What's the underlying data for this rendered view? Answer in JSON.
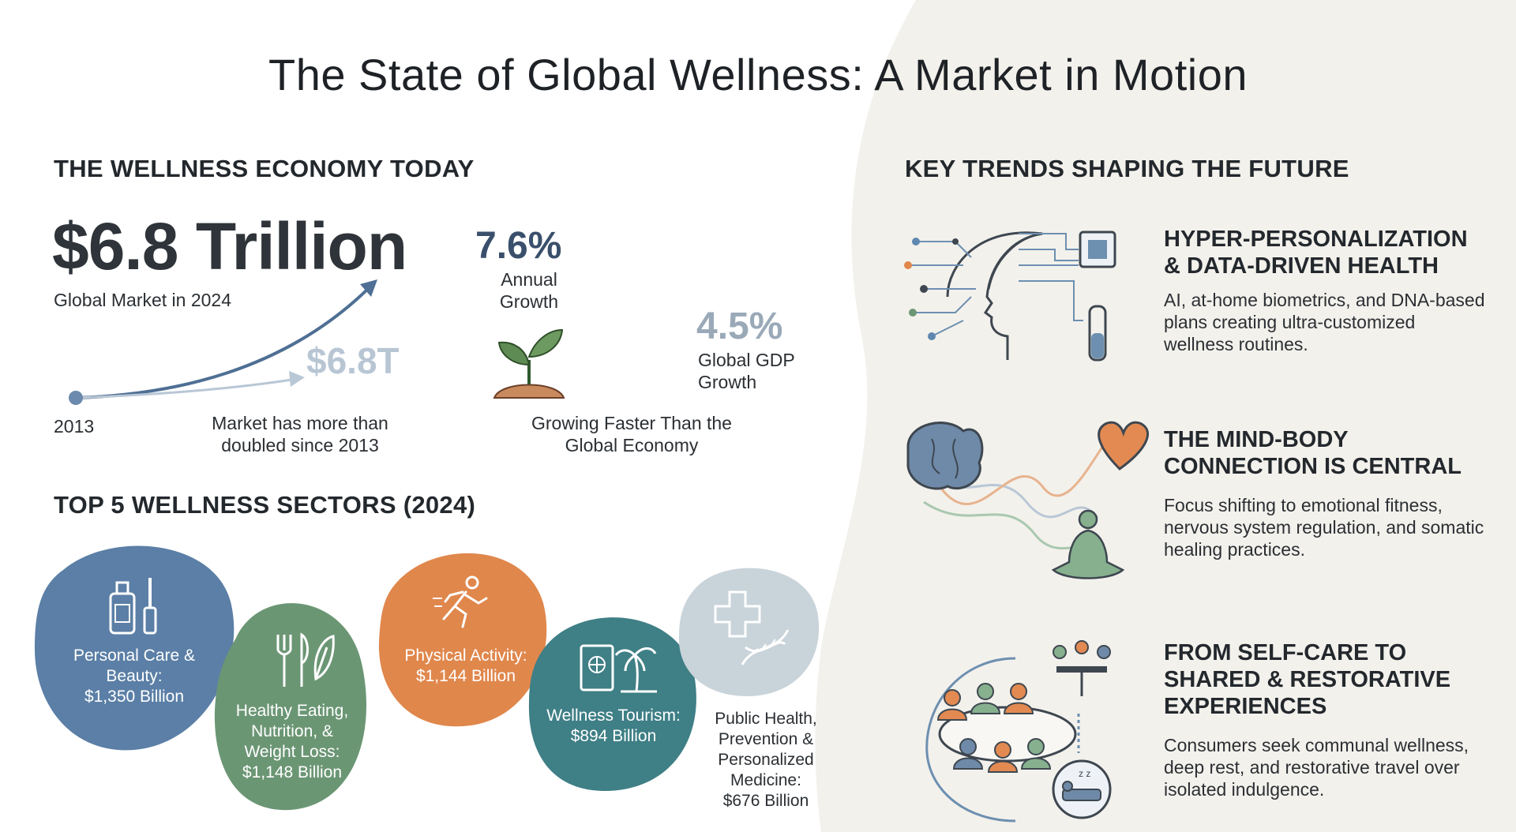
{
  "title": "The State of Global Wellness: A Market in Motion",
  "economy": {
    "heading": "THE WELLNESS ECONOMY TODAY",
    "market_value": "$6.8 Trillion",
    "market_caption": "Global Market in 2024",
    "chart_value_label": "$6.8T",
    "start_year": "2013",
    "doubled_caption": "Market has more than doubled since 2013",
    "annual_growth_pct": "7.6%",
    "annual_growth_label": "Annual Growth",
    "gdp_growth_pct": "4.5%",
    "gdp_growth_label": "Global GDP Growth",
    "comparison_caption": "Growing Faster Than the Global Economy"
  },
  "sectors": {
    "heading": "TOP 5 WELLNESS SECTORS (2024)",
    "items": [
      {
        "name": "Personal Care & Beauty:",
        "value": "$1,350 Billion",
        "color": "#5b7fa6",
        "icon": "cosmetics-icon"
      },
      {
        "name": "Healthy Eating, Nutrition, & Weight Loss:",
        "value": "$1,148 Billion",
        "color": "#6b9674",
        "icon": "utensils-leaf-icon"
      },
      {
        "name": "Physical Activity:",
        "value": "$1,144 Billion",
        "color": "#e0874c",
        "icon": "runner-icon"
      },
      {
        "name": "Wellness Tourism:",
        "value": "$894 Billion",
        "color": "#3f7f86",
        "icon": "passport-palm-icon"
      },
      {
        "name": "Public Health, Prevention & Personalized Medicine:",
        "value": "$676 Billion",
        "color": "#c9d3da",
        "icon": "medical-cross-dna-icon"
      }
    ]
  },
  "trends": {
    "heading": "KEY TRENDS SHAPING THE FUTURE",
    "items": [
      {
        "title": "HYPER-PERSONALIZATION & DATA-DRIVEN HEALTH",
        "description": "AI, at-home biometrics, and DNA-based plans creating ultra-customized wellness routines.",
        "icon": "ai-head-chip-icon"
      },
      {
        "title": "THE MIND-BODY CONNECTION IS CENTRAL",
        "description": "Focus shifting to emotional fitness, nervous system regulation, and somatic healing practices.",
        "icon": "brain-heart-meditation-icon"
      },
      {
        "title": "FROM SELF-CARE TO SHARED & RESTORATIVE EXPERIENCES",
        "description": "Consumers seek communal wellness, deep rest, and restorative travel over isolated indulgence.",
        "icon": "community-rest-icon"
      }
    ]
  }
}
